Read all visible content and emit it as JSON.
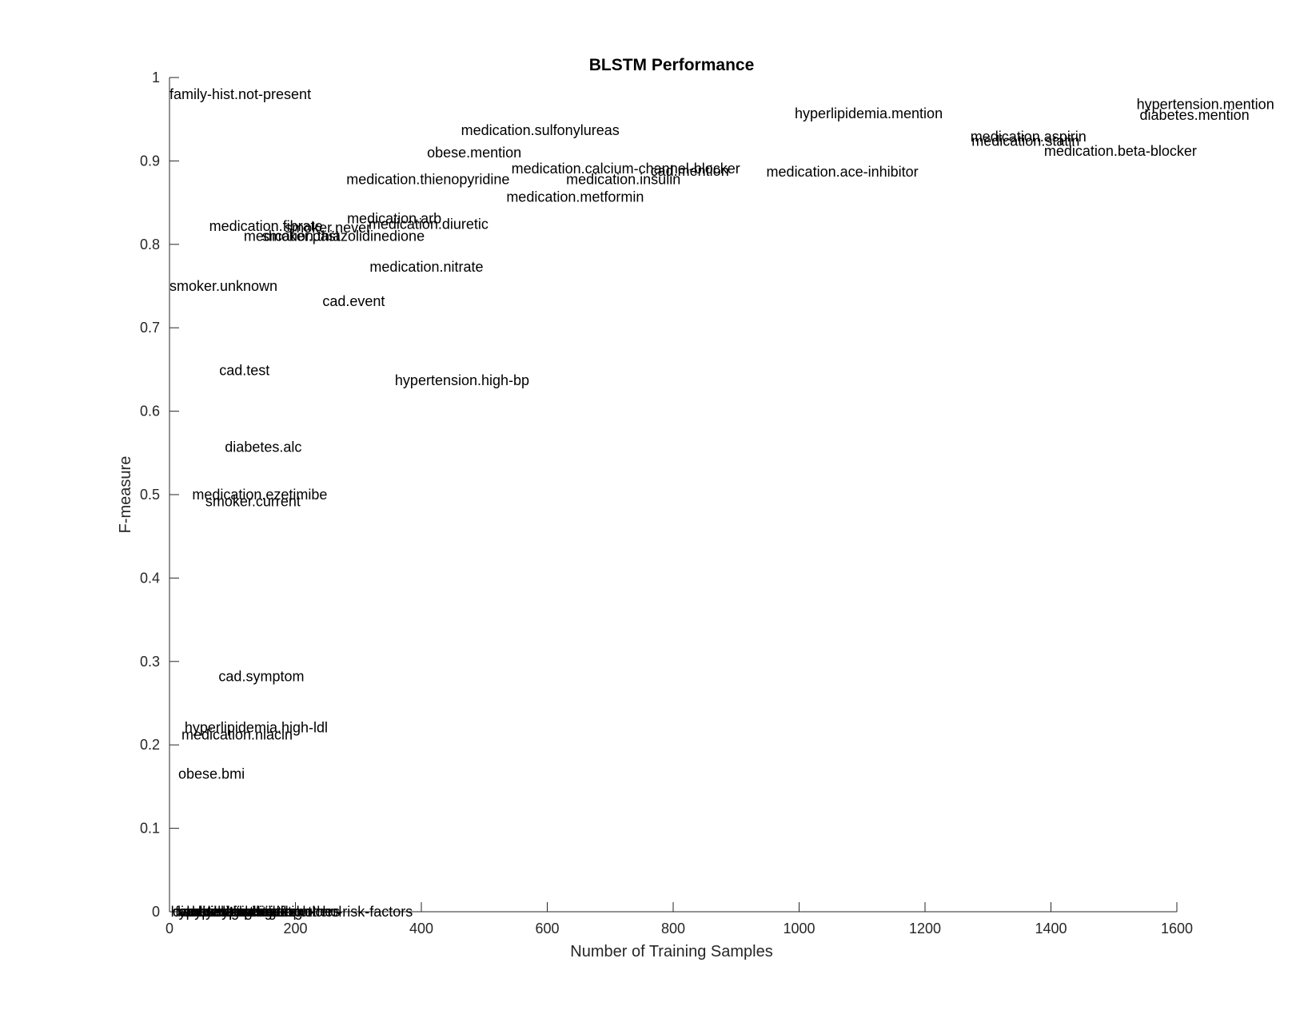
{
  "chart_data": {
    "type": "scatter",
    "title": "BLSTM Performance",
    "xlabel": "Number of Training Samples",
    "ylabel": "F-measure",
    "xlim": [
      0,
      1600
    ],
    "ylim": [
      0,
      1
    ],
    "xticks": [
      "0",
      "200",
      "400",
      "600",
      "800",
      "1000",
      "1200",
      "1400",
      "1600"
    ],
    "yticks": [
      "0",
      "0.1",
      "0.2",
      "0.3",
      "0.4",
      "0.5",
      "0.6",
      "0.7",
      "0.8",
      "0.9",
      "1"
    ],
    "grid": false,
    "legend": "none",
    "points": [
      {
        "label": "family-hist.not-present",
        "x": 0,
        "y": 0.98
      },
      {
        "label": "hyperlipidemia.mention",
        "x": 993,
        "y": 0.957
      },
      {
        "label": "hypertension.mention",
        "x": 1536,
        "y": 0.968
      },
      {
        "label": "diabetes.mention",
        "x": 1541,
        "y": 0.955
      },
      {
        "label": "medication.sulfonylureas",
        "x": 463,
        "y": 0.937
      },
      {
        "label": "medication.aspirin",
        "x": 1272,
        "y": 0.929
      },
      {
        "label": "medication.statin",
        "x": 1274,
        "y": 0.924
      },
      {
        "label": "medication.beta-blocker",
        "x": 1389,
        "y": 0.912
      },
      {
        "label": "obese.mention",
        "x": 409,
        "y": 0.91
      },
      {
        "label": "medication.calcium-channel-blocker",
        "x": 543,
        "y": 0.891
      },
      {
        "label": "cad.mention",
        "x": 764,
        "y": 0.888
      },
      {
        "label": "medication.ace-inhibitor",
        "x": 948,
        "y": 0.887
      },
      {
        "label": "medication.thienopyridine",
        "x": 281,
        "y": 0.878
      },
      {
        "label": "medication.insulin",
        "x": 630,
        "y": 0.878
      },
      {
        "label": "medication.metformin",
        "x": 535,
        "y": 0.857
      },
      {
        "label": "medication.arb",
        "x": 282,
        "y": 0.831
      },
      {
        "label": "medication.diuretic",
        "x": 316,
        "y": 0.824
      },
      {
        "label": "smoker.never",
        "x": 183,
        "y": 0.82
      },
      {
        "label": "medication.fibrate",
        "x": 63,
        "y": 0.822
      },
      {
        "label": "medication.thiazolidinedione",
        "x": 118,
        "y": 0.81
      },
      {
        "label": "smoker.past",
        "x": 147,
        "y": 0.81
      },
      {
        "label": "medication.nitrate",
        "x": 318,
        "y": 0.773
      },
      {
        "label": "smoker.unknown",
        "x": 0,
        "y": 0.75
      },
      {
        "label": "cad.event",
        "x": 243,
        "y": 0.732
      },
      {
        "label": "cad.test",
        "x": 79,
        "y": 0.649
      },
      {
        "label": "hypertension.high-bp",
        "x": 358,
        "y": 0.637
      },
      {
        "label": "diabetes.alc",
        "x": 88,
        "y": 0.557
      },
      {
        "label": "medication.ezetimibe",
        "x": 36,
        "y": 0.5
      },
      {
        "label": "smoker.current",
        "x": 57,
        "y": 0.492
      },
      {
        "label": "cad.symptom",
        "x": 78,
        "y": 0.282
      },
      {
        "label": "hyperlipidemia.high-ldl",
        "x": 24,
        "y": 0.221
      },
      {
        "label": "medication.niacin",
        "x": 19,
        "y": 0.212
      },
      {
        "label": "obese.bmi",
        "x": 14,
        "y": 0.165
      },
      {
        "label": "hypertension.high-chol",
        "x": 2,
        "y": 0
      },
      {
        "label": "diabetes.glucose",
        "x": 5,
        "y": 0
      },
      {
        "label": "family-hist.present",
        "x": 9,
        "y": 0
      },
      {
        "label": "cad.risk-factors",
        "x": 14,
        "y": 0
      },
      {
        "label": "medication.others",
        "x": 21,
        "y": 0
      },
      {
        "label": "hyperlipidemia.high-chol",
        "x": 27,
        "y": 0
      },
      {
        "label": "obese.waist",
        "x": 33,
        "y": 0
      },
      {
        "label": "diabetes.high-bp",
        "x": 40,
        "y": 0
      },
      {
        "label": "smoker.ever",
        "x": 48,
        "y": 0
      },
      {
        "label": "cad.high-risk",
        "x": 58,
        "y": 0
      },
      {
        "label": "hypertension.others",
        "x": 70,
        "y": 0
      },
      {
        "label": "medication.other-risk-factors",
        "x": 98,
        "y": 0
      }
    ]
  }
}
